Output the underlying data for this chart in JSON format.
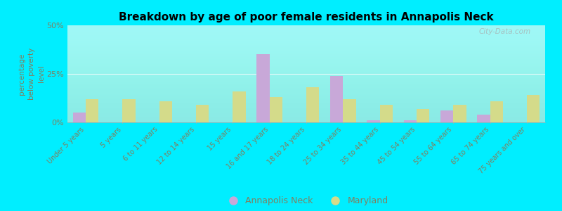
{
  "title": "Breakdown by age of poor female residents in Annapolis Neck",
  "categories": [
    "Under 5 years",
    "5 years",
    "6 to 11 years",
    "12 to 14 years",
    "15 years",
    "16 and 17 years",
    "18 to 24 years",
    "25 to 34 years",
    "35 to 44 years",
    "45 to 54 years",
    "55 to 64 years",
    "65 to 74 years",
    "75 years and over"
  ],
  "annapolis_neck": [
    5,
    0,
    0,
    0,
    0,
    35,
    0,
    24,
    1,
    1,
    6,
    4,
    0
  ],
  "maryland": [
    12,
    12,
    11,
    9,
    16,
    13,
    18,
    12,
    9,
    7,
    9,
    11,
    14
  ],
  "annapolis_color": "#c8a8d8",
  "maryland_color": "#d4db8a",
  "background_plot_top": "#f5f5e8",
  "background_plot_bottom": "#d8e8c8",
  "background_figure": "#00eeff",
  "ylabel": "percentage\nbelow poverty\nlevel",
  "ylim": [
    0,
    50
  ],
  "yticks": [
    0,
    25,
    50
  ],
  "ytick_labels": [
    "0%",
    "25%",
    "50%"
  ],
  "watermark": "City-Data.com",
  "bar_width": 0.35,
  "tick_color": "#808060",
  "label_color": "#808060"
}
